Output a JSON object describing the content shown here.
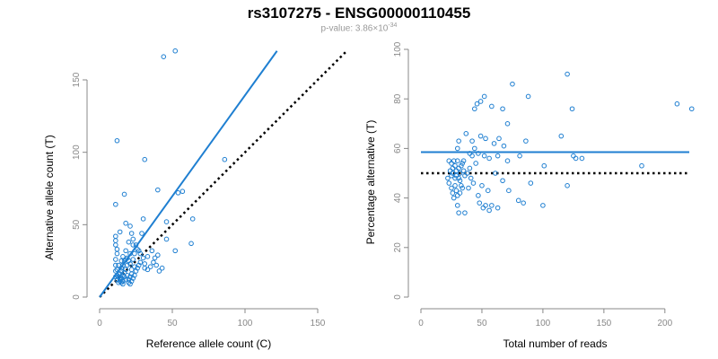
{
  "figure": {
    "title": "rs3107275 - ENSG00000110455",
    "pvalue_text": "p-value: 3.86×10",
    "pvalue_exponent": "-34"
  },
  "colors": {
    "points": "#1f7fd1",
    "fit": "#1f7fd1",
    "reference": "#000000",
    "axis": "#888888"
  },
  "chart_data": [
    {
      "type": "scatter",
      "xlabel": "Reference allele count (C)",
      "ylabel": "Alternative allele count (T)",
      "xlim": [
        0,
        150
      ],
      "ylim": [
        0,
        150
      ],
      "xticks": [
        0,
        50,
        100,
        150
      ],
      "yticks": [
        0,
        50,
        100,
        150
      ],
      "fit_line": {
        "x": [
          0,
          122
        ],
        "y": [
          0,
          170
        ]
      },
      "reference_line": {
        "x": [
          0,
          170
        ],
        "y": [
          0,
          170
        ]
      },
      "points": [
        [
          12,
          108
        ],
        [
          31,
          95
        ],
        [
          44,
          166
        ],
        [
          52,
          170
        ],
        [
          86,
          95
        ],
        [
          40,
          74
        ],
        [
          54,
          72
        ],
        [
          57,
          73
        ],
        [
          17,
          71
        ],
        [
          64,
          54
        ],
        [
          11,
          64
        ],
        [
          46,
          52
        ],
        [
          21,
          49
        ],
        [
          30,
          54
        ],
        [
          18,
          51
        ],
        [
          29,
          44
        ],
        [
          63,
          37
        ],
        [
          52,
          32
        ],
        [
          36,
          32
        ],
        [
          14,
          45
        ],
        [
          11,
          42
        ],
        [
          11,
          39
        ],
        [
          11,
          36
        ],
        [
          12,
          33
        ],
        [
          12,
          30
        ],
        [
          11,
          26
        ],
        [
          11,
          22
        ],
        [
          11,
          18
        ],
        [
          11,
          14
        ],
        [
          12,
          12
        ],
        [
          13,
          10
        ],
        [
          14,
          11
        ],
        [
          15,
          13
        ],
        [
          16,
          15
        ],
        [
          17,
          17
        ],
        [
          14,
          16
        ],
        [
          15,
          20
        ],
        [
          16,
          22
        ],
        [
          18,
          26
        ],
        [
          20,
          25
        ],
        [
          19,
          22
        ],
        [
          18,
          19
        ],
        [
          17,
          14
        ],
        [
          16,
          11
        ],
        [
          20,
          12
        ],
        [
          21,
          14
        ],
        [
          22,
          16
        ],
        [
          22,
          19
        ],
        [
          21,
          23
        ],
        [
          23,
          26
        ],
        [
          24,
          30
        ],
        [
          27,
          32
        ],
        [
          25,
          36
        ],
        [
          23,
          40
        ],
        [
          22,
          44
        ],
        [
          20,
          38
        ],
        [
          18,
          32
        ],
        [
          16,
          28
        ],
        [
          15,
          25
        ],
        [
          13,
          22
        ],
        [
          12,
          19
        ],
        [
          13,
          16
        ],
        [
          14,
          13
        ],
        [
          18,
          12
        ],
        [
          20,
          10
        ],
        [
          21,
          9
        ],
        [
          22,
          11
        ],
        [
          23,
          13
        ],
        [
          24,
          15
        ],
        [
          25,
          18
        ],
        [
          27,
          22
        ],
        [
          26,
          20
        ],
        [
          28,
          24
        ],
        [
          30,
          27
        ],
        [
          31,
          20
        ],
        [
          33,
          19
        ],
        [
          35,
          21
        ],
        [
          37,
          24
        ],
        [
          39,
          22
        ],
        [
          41,
          18
        ],
        [
          43,
          20
        ],
        [
          46,
          40
        ],
        [
          40,
          29
        ],
        [
          33,
          28
        ],
        [
          28,
          30
        ],
        [
          26,
          33
        ],
        [
          23,
          36
        ],
        [
          21,
          30
        ],
        [
          19,
          27
        ],
        [
          17,
          25
        ],
        [
          15,
          18
        ],
        [
          13,
          14
        ],
        [
          14,
          12
        ],
        [
          15,
          10
        ],
        [
          16,
          9
        ],
        [
          12,
          15
        ],
        [
          19,
          15
        ],
        [
          24,
          21
        ],
        [
          31,
          23
        ],
        [
          38,
          27
        ]
      ]
    },
    {
      "type": "scatter",
      "xlabel": "Total number of reads",
      "ylabel": "Percentage alternative (T)",
      "xlim": [
        0,
        220
      ],
      "ylim": [
        0,
        100
      ],
      "xticks": [
        0,
        50,
        100,
        150,
        200
      ],
      "yticks": [
        0,
        20,
        40,
        60,
        80,
        100
      ],
      "fit_line": {
        "x": [
          0,
          220
        ],
        "y": [
          58.5,
          58.5
        ]
      },
      "reference_line": {
        "x": [
          0,
          220
        ],
        "y": [
          50,
          50
        ]
      },
      "points": [
        [
          120,
          90
        ],
        [
          75,
          86
        ],
        [
          52,
          81
        ],
        [
          49,
          79
        ],
        [
          88,
          81
        ],
        [
          124,
          76
        ],
        [
          210,
          78
        ],
        [
          222,
          76
        ],
        [
          44,
          76
        ],
        [
          46,
          78
        ],
        [
          58,
          77
        ],
        [
          67,
          76
        ],
        [
          71,
          70
        ],
        [
          37,
          66
        ],
        [
          42,
          63
        ],
        [
          49,
          65
        ],
        [
          53,
          64
        ],
        [
          64,
          64
        ],
        [
          60,
          62
        ],
        [
          68,
          61
        ],
        [
          86,
          63
        ],
        [
          115,
          65
        ],
        [
          31,
          63
        ],
        [
          30,
          60
        ],
        [
          40,
          58
        ],
        [
          44,
          60
        ],
        [
          47,
          58
        ],
        [
          52,
          57
        ],
        [
          56,
          56
        ],
        [
          63,
          57
        ],
        [
          71,
          55
        ],
        [
          81,
          57
        ],
        [
          101,
          53
        ],
        [
          125,
          57
        ],
        [
          127,
          56
        ],
        [
          132,
          56
        ],
        [
          181,
          53
        ],
        [
          23,
          55
        ],
        [
          25,
          54
        ],
        [
          26,
          52
        ],
        [
          27,
          55
        ],
        [
          28,
          53
        ],
        [
          29,
          51
        ],
        [
          30,
          55
        ],
        [
          31,
          52
        ],
        [
          32,
          50
        ],
        [
          33,
          53
        ],
        [
          34,
          54
        ],
        [
          35,
          51
        ],
        [
          36,
          49
        ],
        [
          38,
          50
        ],
        [
          40,
          52
        ],
        [
          41,
          48
        ],
        [
          43,
          46
        ],
        [
          22,
          48
        ],
        [
          23,
          46
        ],
        [
          25,
          44
        ],
        [
          26,
          42
        ],
        [
          27,
          40
        ],
        [
          28,
          45
        ],
        [
          29,
          43
        ],
        [
          30,
          41
        ],
        [
          32,
          47
        ],
        [
          33,
          45
        ],
        [
          34,
          44
        ],
        [
          26,
          50
        ],
        [
          25,
          49
        ],
        [
          24,
          51
        ],
        [
          28,
          48
        ],
        [
          29,
          49
        ],
        [
          31,
          48
        ],
        [
          32,
          42
        ],
        [
          30,
          37
        ],
        [
          31,
          34
        ],
        [
          36,
          34
        ],
        [
          48,
          38
        ],
        [
          51,
          36
        ],
        [
          53,
          37
        ],
        [
          56,
          35
        ],
        [
          58,
          37
        ],
        [
          63,
          36
        ],
        [
          72,
          43
        ],
        [
          80,
          39
        ],
        [
          84,
          38
        ],
        [
          90,
          46
        ],
        [
          100,
          37
        ],
        [
          120,
          45
        ],
        [
          61,
          50
        ],
        [
          67,
          47
        ],
        [
          45,
          54
        ],
        [
          50,
          45
        ],
        [
          55,
          43
        ],
        [
          35,
          55
        ],
        [
          42,
          57
        ],
        [
          47,
          41
        ],
        [
          39,
          44
        ]
      ]
    }
  ]
}
